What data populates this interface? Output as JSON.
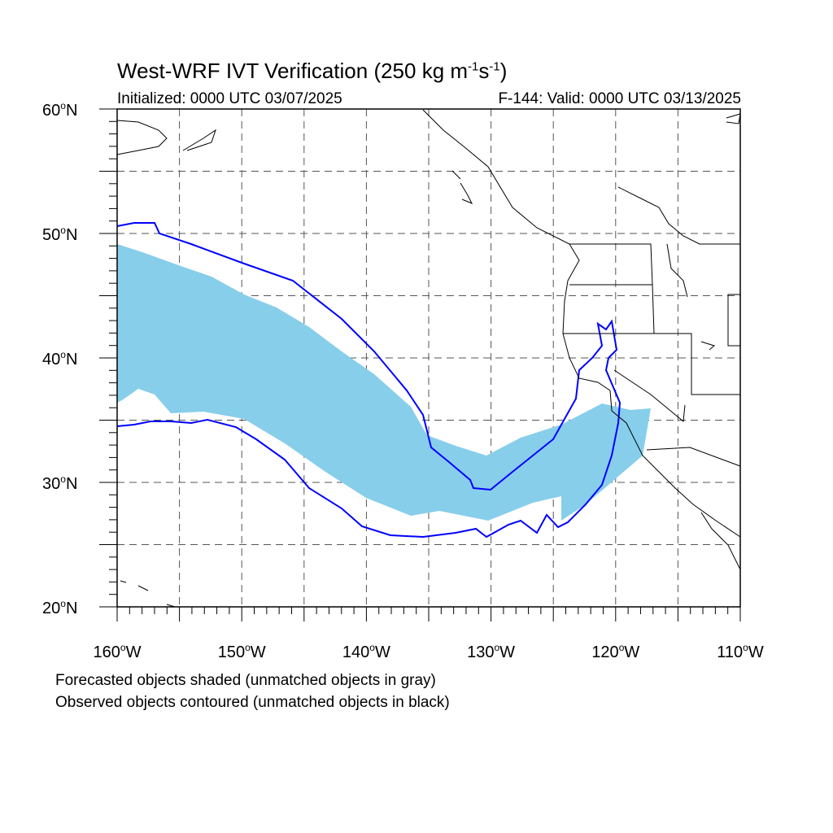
{
  "title": {
    "prefix": "West-WRF IVT Verification (250 kg m",
    "exp1": "-1",
    "mid": "s",
    "exp2": "-1",
    "suffix": ")"
  },
  "initialized": "Initialized: 0000 UTC 03/07/2025",
  "valid": "F-144: Valid: 0000 UTC 03/13/2025",
  "notes": {
    "forecast": "Forecasted objects shaded (unmatched objects in gray)",
    "observed": "Observed objects contoured (unmatched objects in black)"
  },
  "axes": {
    "lat_labels": [
      {
        "deg": "60",
        "hemi": "N"
      },
      {
        "deg": "50",
        "hemi": "N"
      },
      {
        "deg": "40",
        "hemi": "N"
      },
      {
        "deg": "30",
        "hemi": "N"
      },
      {
        "deg": "20",
        "hemi": "N"
      }
    ],
    "lon_labels": [
      {
        "deg": "160",
        "hemi": "W"
      },
      {
        "deg": "150",
        "hemi": "W"
      },
      {
        "deg": "140",
        "hemi": "W"
      },
      {
        "deg": "130",
        "hemi": "W"
      },
      {
        "deg": "120",
        "hemi": "W"
      },
      {
        "deg": "110",
        "hemi": "W"
      }
    ],
    "lat_range": [
      20,
      60
    ],
    "lon_range": [
      -160,
      -110
    ]
  },
  "colors": {
    "forecast_fill": "#87ceeb",
    "observed_contour": "#0000ff",
    "coastline": "#000000",
    "grid": "#555555"
  }
}
